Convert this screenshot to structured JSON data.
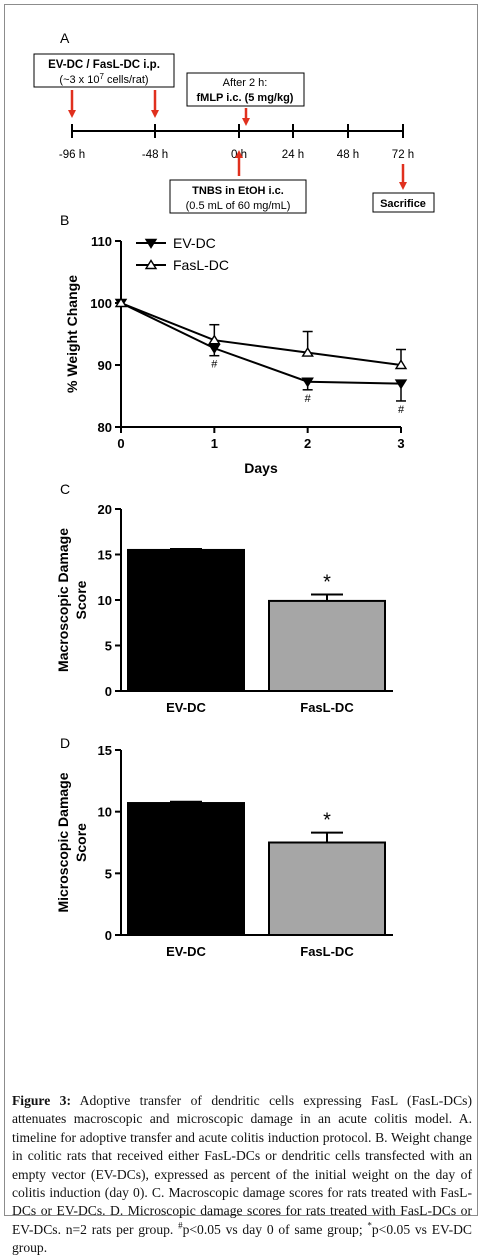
{
  "colors": {
    "arrow": "#e0301e",
    "ev_bar": "#000000",
    "fasl_bar": "#a6a6a6",
    "axis": "#000000"
  },
  "panel_a": {
    "letter": "A",
    "box1_line1": "EV-DC / FasL-DC i.p.",
    "box1_line2": "(~3 x 10",
    "box1_sup": "7",
    "box1_line2b": " cells/rat)",
    "box2_line1": "After 2 h:",
    "box2_line2": "fMLP i.c. (5 mg/kg)",
    "box3_line1": "TNBS in EtOH i.c.",
    "box3_line2": "(0.5 mL of 60 mg/mL)",
    "box4": "Sacrifice",
    "ticks": [
      "-96 h",
      "-48 h",
      "0 h",
      "24 h",
      "48 h",
      "72 h"
    ]
  },
  "chart_data": [
    {
      "type": "line",
      "panel": "B",
      "ylabel": "% Weight Change",
      "xlabel": "Days",
      "x": [
        0,
        1,
        2,
        3
      ],
      "xlim": [
        0,
        3
      ],
      "ylim": [
        80,
        110
      ],
      "yticks": [
        80,
        90,
        100,
        110
      ],
      "xticks": [
        0,
        1,
        2,
        3
      ],
      "series": [
        {
          "name": "EV-DC",
          "marker": "filled-triangle-down",
          "values": [
            100,
            92.7,
            87.3,
            87.0
          ],
          "err": [
            0,
            1.2,
            1.3,
            2.8
          ]
        },
        {
          "name": "FasL-DC",
          "marker": "open-triangle-up",
          "values": [
            100,
            94.0,
            92.0,
            90.0
          ],
          "err": [
            0,
            2.5,
            3.4,
            2.5
          ]
        }
      ],
      "annotations": [
        "#",
        "#",
        "#"
      ],
      "legend": "top-left"
    },
    {
      "type": "bar",
      "panel": "C",
      "ylabel_line1": "Macroscopic Damage",
      "ylabel_line2": "Score",
      "categories": [
        "EV-DC",
        "FasL-DC"
      ],
      "values": [
        15.5,
        9.9
      ],
      "err": [
        0.1,
        0.7
      ],
      "ylim": [
        0,
        20
      ],
      "yticks": [
        0,
        5,
        10,
        15,
        20
      ],
      "annotation": "*"
    },
    {
      "type": "bar",
      "panel": "D",
      "ylabel_line1": "Microscopic Damage",
      "ylabel_line2": "Score",
      "categories": [
        "EV-DC",
        "FasL-DC"
      ],
      "values": [
        10.7,
        7.5
      ],
      "err": [
        0.1,
        0.8
      ],
      "ylim": [
        0,
        15
      ],
      "yticks": [
        0,
        5,
        10,
        15
      ],
      "annotation": "*"
    }
  ],
  "caption": {
    "label": "Figure 3:",
    "text1": " Adoptive transfer of dendritic cells expressing FasL (FasL-DCs) attenuates macroscopic and microscopic damage in an acute colitis model. A. timeline for adoptive transfer and acute colitis induction protocol. B. Weight change in colitic rats that received either FasL-DCs or dendritic cells transfected with an empty vector (EV-DCs), expressed as percent of the initial weight on the day of colitis induction (day 0). C. Macroscopic damage scores for rats treated with FasL-DCs or EV-DCs. D. Microscopic damage scores for rats treated with FasL-DCs or EV-DCs. n=2 rats per group. ",
    "sup1": "#",
    "text2": "p<0.05 vs day 0 of same group; ",
    "sup2": "*",
    "text3": "p<0.05 vs EV-DC group."
  }
}
